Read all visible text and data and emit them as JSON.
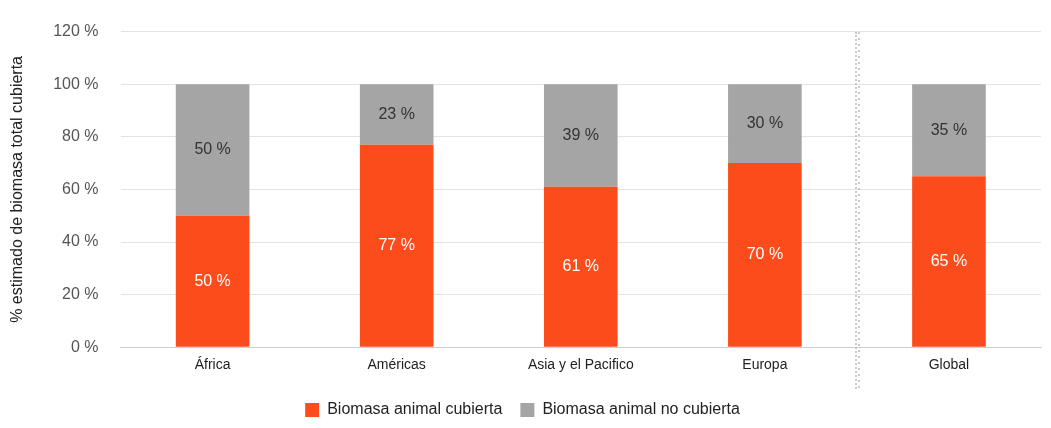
{
  "chart_data": {
    "type": "bar",
    "stacked": true,
    "ylabel": "% estimado de biomasa total cubierta",
    "categories": [
      "África",
      "Américas",
      "Asia y el Pacifico",
      "Europa",
      "Global"
    ],
    "series": [
      {
        "name": "Biomasa animal cubierta",
        "color": "#fc4c1c",
        "values": [
          50,
          77,
          61,
          70,
          65
        ],
        "value_labels": [
          "50 %",
          "77 %",
          "61 %",
          "70 %",
          "65 %"
        ]
      },
      {
        "name": "Biomasa animal no cubierta",
        "color": "#a5a5a5",
        "values": [
          50,
          23,
          39,
          30,
          35
        ],
        "value_labels": [
          "50 %",
          "23 %",
          "39 %",
          "30 %",
          "35 %"
        ]
      }
    ],
    "ylim": [
      0,
      120
    ],
    "yticks": [
      {
        "value": 0,
        "label": "0 %"
      },
      {
        "value": 20,
        "label": "20 %"
      },
      {
        "value": 40,
        "label": "40 %"
      },
      {
        "value": 60,
        "label": "60 %"
      },
      {
        "value": 80,
        "label": "80 %"
      },
      {
        "value": 100,
        "label": "100 %"
      },
      {
        "value": 120,
        "label": "120 %"
      }
    ],
    "grid": "y",
    "legend": "bottom"
  }
}
